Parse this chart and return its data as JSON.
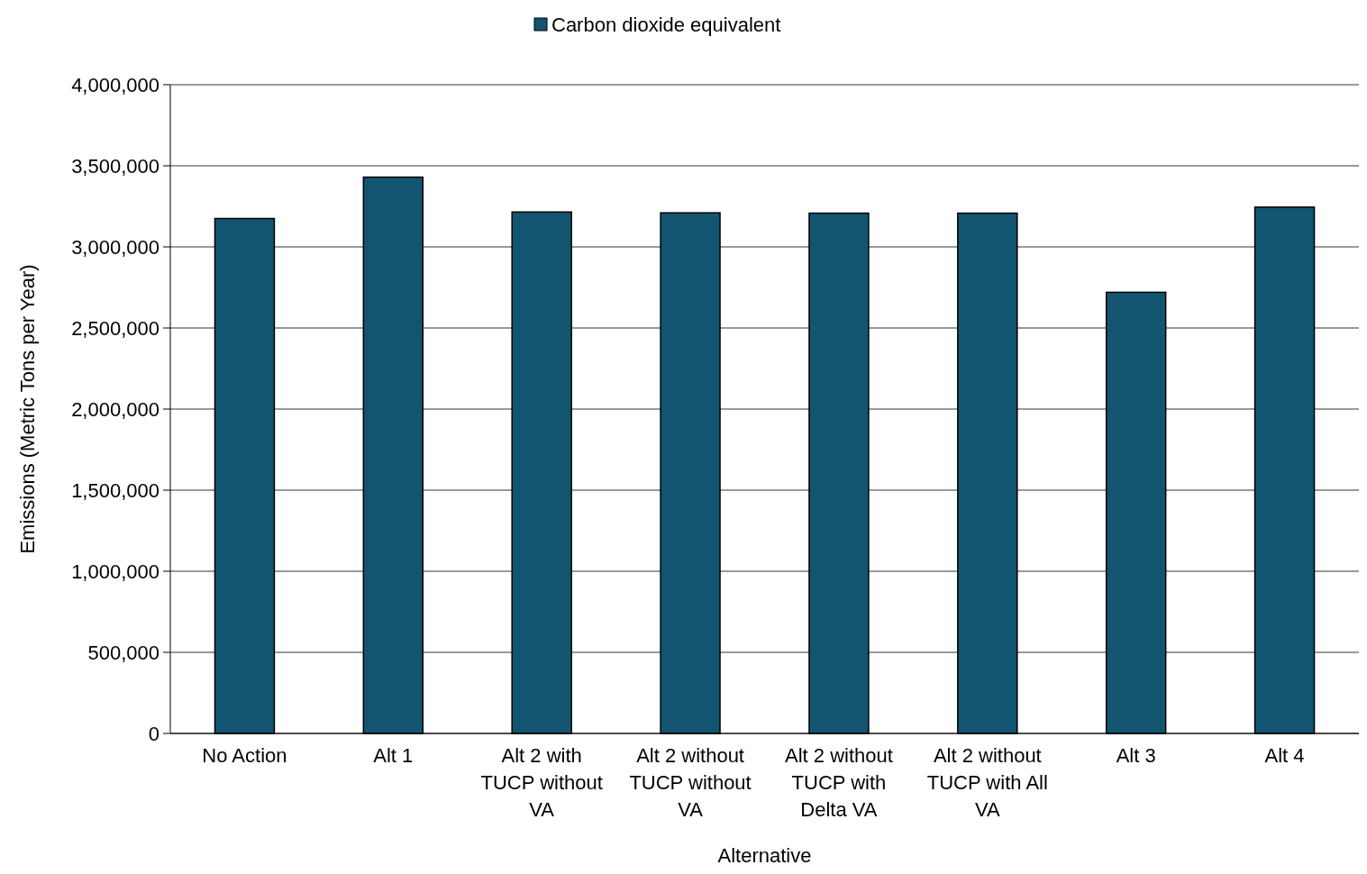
{
  "chart_data": {
    "type": "bar",
    "xlabel": "Alternative",
    "ylabel": "Emissions (Metric Tons per Year)",
    "categories": [
      "No Action",
      "Alt 1",
      "Alt 2 with TUCP without VA",
      "Alt 2 without TUCP without VA",
      "Alt 2 without TUCP with Delta VA",
      "Alt 2 without TUCP with All VA",
      "Alt 3",
      "Alt 4"
    ],
    "series": [
      {
        "name": "Carbon dioxide equivalent",
        "color": "#135570",
        "values": [
          3175000,
          3430000,
          3215000,
          3210000,
          3208000,
          3208000,
          2720000,
          3245000
        ]
      }
    ],
    "ylim": [
      0,
      4000000
    ],
    "yticks": [
      {
        "value": 0,
        "label": "0"
      },
      {
        "value": 500000,
        "label": "500,000"
      },
      {
        "value": 1000000,
        "label": "1,000,000"
      },
      {
        "value": 1500000,
        "label": "1,500,000"
      },
      {
        "value": 2000000,
        "label": "2,000,000"
      },
      {
        "value": 2500000,
        "label": "2,500,000"
      },
      {
        "value": 3000000,
        "label": "3,000,000"
      },
      {
        "value": 3500000,
        "label": "3,500,000"
      },
      {
        "value": 4000000,
        "label": "4,000,000"
      }
    ],
    "grid": "y",
    "legend": "top"
  }
}
